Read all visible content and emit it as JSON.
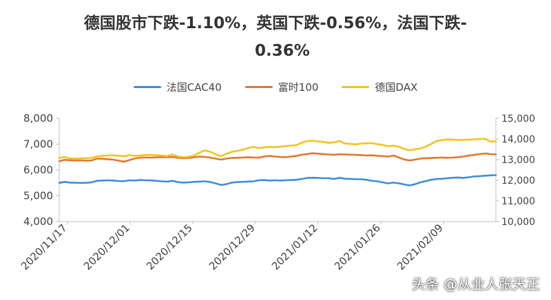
{
  "title_line1": "德国股市下跌-1.10%，英国下跌-0.56%，法国下跌-",
  "title_line2": "0.36%",
  "watermark": "头条 @从业人张天正",
  "chart_data": {
    "type": "line",
    "title": "德国股市下跌-1.10%，英国下跌-0.56%，法国下跌-0.36%",
    "legend_position": "top",
    "grid": false,
    "x_tick_labels": [
      "2020/11/17",
      "2020/12/01",
      "2020/12/15",
      "2020/12/29",
      "2021/01/12",
      "2021/01/26",
      "2021/02/09"
    ],
    "y_left": {
      "range": [
        4000,
        8000
      ],
      "ticks": [
        "4,000",
        "5,000",
        "6,000",
        "7,000",
        "8,000"
      ]
    },
    "y_right": {
      "range": [
        10000,
        15000
      ],
      "ticks": [
        "10,000",
        "11,000",
        "12,000",
        "13,000",
        "14,000",
        "15,000"
      ]
    },
    "series": [
      {
        "name": "法国CAC40",
        "axis": "left",
        "color": "#3a8fd9",
        "values": [
          5500,
          5540,
          5510,
          5505,
          5500,
          5502,
          5520,
          5580,
          5590,
          5600,
          5590,
          5570,
          5565,
          5600,
          5590,
          5610,
          5600,
          5595,
          5580,
          5560,
          5550,
          5580,
          5530,
          5510,
          5520,
          5540,
          5550,
          5560,
          5530,
          5480,
          5420,
          5450,
          5510,
          5530,
          5540,
          5550,
          5560,
          5600,
          5610,
          5590,
          5600,
          5590,
          5600,
          5610,
          5620,
          5650,
          5690,
          5700,
          5690,
          5680,
          5680,
          5650,
          5700,
          5660,
          5650,
          5640,
          5640,
          5620,
          5580,
          5560,
          5520,
          5480,
          5510,
          5480,
          5440,
          5400,
          5450,
          5520,
          5570,
          5620,
          5650,
          5660,
          5680,
          5700,
          5710,
          5690,
          5720,
          5750,
          5760,
          5780,
          5790,
          5800
        ]
      },
      {
        "name": "富时100",
        "axis": "right",
        "color": "#e0782f",
        "values": [
          12920,
          12990,
          12970,
          12960,
          12960,
          12950,
          12960,
          13050,
          13040,
          13020,
          13000,
          12950,
          12900,
          12980,
          13050,
          13100,
          13100,
          13100,
          13110,
          13120,
          13120,
          13130,
          13090,
          13070,
          13080,
          13110,
          13150,
          13130,
          13100,
          13050,
          13000,
          13050,
          13080,
          13090,
          13100,
          13120,
          13100,
          13100,
          13150,
          13180,
          13150,
          13130,
          13120,
          13150,
          13180,
          13240,
          13270,
          13310,
          13290,
          13270,
          13250,
          13230,
          13260,
          13250,
          13240,
          13230,
          13220,
          13200,
          13210,
          13190,
          13170,
          13150,
          13200,
          13100,
          13010,
          12960,
          13000,
          13050,
          13070,
          13080,
          13090,
          13100,
          13090,
          13100,
          13120,
          13150,
          13200,
          13230,
          13270,
          13300,
          13270,
          13250
        ]
      },
      {
        "name": "德国DAX",
        "axis": "right",
        "color": "#f2c31c",
        "values": [
          13080,
          13130,
          13060,
          13050,
          13060,
          13070,
          13080,
          13160,
          13180,
          13200,
          13210,
          13190,
          13160,
          13220,
          13180,
          13200,
          13220,
          13230,
          13210,
          13200,
          13170,
          13250,
          13150,
          13120,
          13140,
          13190,
          13340,
          13450,
          13380,
          13260,
          13170,
          13280,
          13380,
          13420,
          13480,
          13560,
          13620,
          13560,
          13590,
          13620,
          13600,
          13630,
          13650,
          13680,
          13700,
          13820,
          13900,
          13920,
          13880,
          13860,
          13810,
          13840,
          13900,
          13780,
          13760,
          13740,
          13780,
          13790,
          13800,
          13750,
          13710,
          13650,
          13680,
          13620,
          13520,
          13450,
          13500,
          13540,
          13630,
          13760,
          13900,
          13950,
          13980,
          13970,
          13950,
          13960,
          13970,
          13980,
          14000,
          14010,
          13870,
          13880
        ]
      }
    ]
  }
}
